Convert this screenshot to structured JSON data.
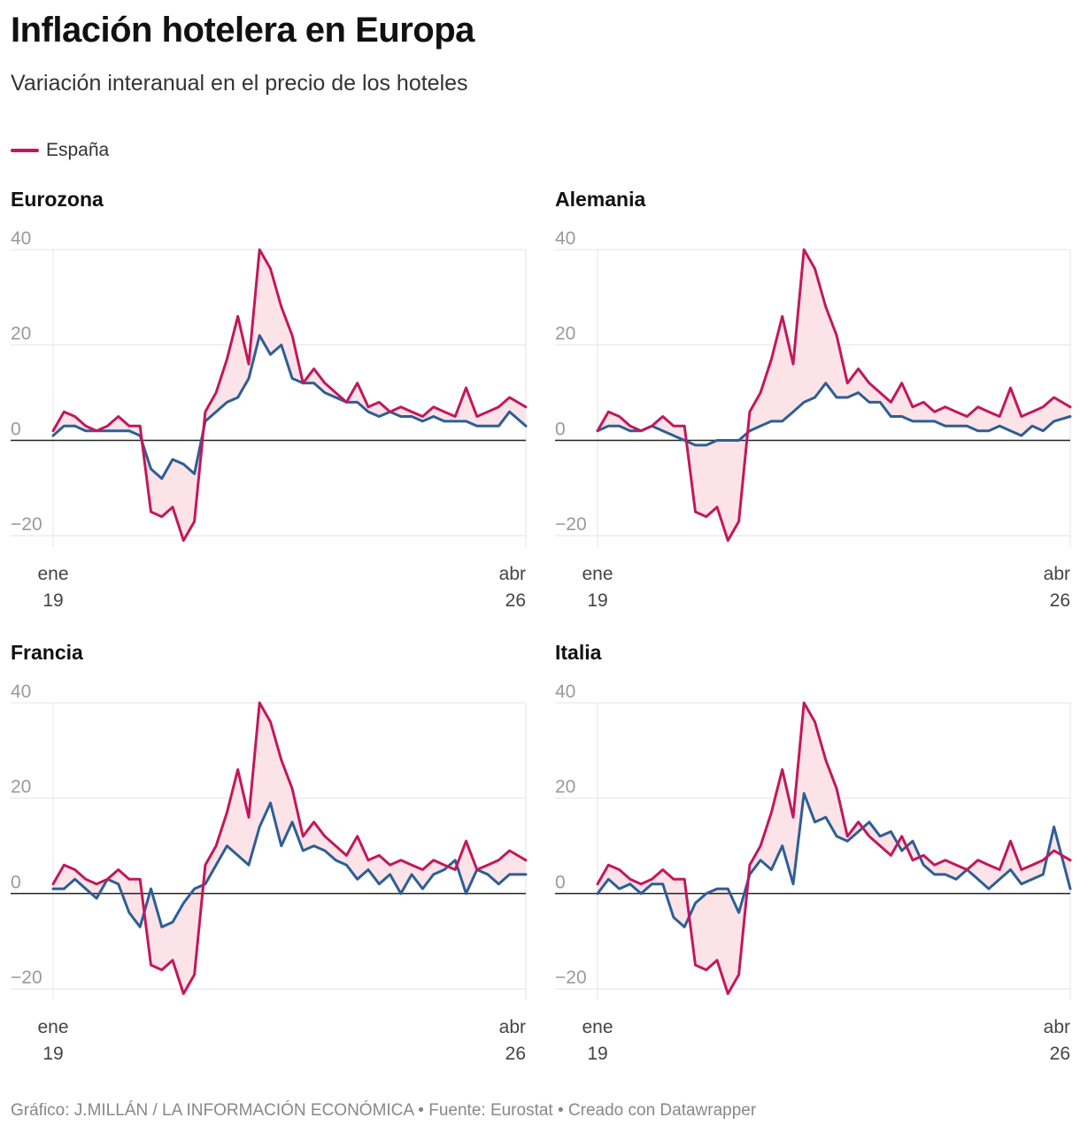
{
  "title": "Inflación hotelera en Europa",
  "subtitle": "Variación interanual en el precio de los hoteles",
  "legend": {
    "label": "España",
    "color": "#c2185b"
  },
  "footer": "Gráfico: J.MILLÁN / LA INFORMACIÓN ECONÓMICA • Fuente: Eurostat • Creado con Datawrapper",
  "colors": {
    "spain": "#c2185b",
    "other": "#2e5e95",
    "fill": "#fbe3e8",
    "grid": "#e4e4e4",
    "zero": "#222222"
  },
  "chart_data": [
    {
      "type": "line",
      "title": "Eurozona",
      "xlabel": "",
      "ylabel": "",
      "ylim": [
        -22,
        40
      ],
      "yticks": [
        40,
        20,
        0,
        -20
      ],
      "xticks": [
        {
          "month": 1,
          "lines": [
            "ene",
            "19"
          ]
        },
        {
          "month": 88,
          "lines": [
            "abr",
            "26"
          ]
        }
      ],
      "grid": true,
      "legend": "top-left",
      "series": [
        {
          "name": "España",
          "color": "#c2185b",
          "x": [
            1,
            3,
            5,
            7,
            9,
            11,
            13,
            15,
            17,
            19,
            21,
            23,
            25,
            27,
            29,
            31,
            33,
            35,
            37,
            39,
            41,
            43,
            45,
            47,
            49,
            51,
            53,
            55,
            57,
            59,
            61,
            63,
            65,
            67,
            69,
            71,
            73,
            75,
            77,
            79,
            81,
            83,
            85,
            88
          ],
          "values": [
            2,
            6,
            5,
            3,
            2,
            3,
            5,
            3,
            3,
            -15,
            -16,
            -14,
            -21,
            -17,
            6,
            10,
            17,
            26,
            16,
            40,
            36,
            28,
            22,
            12,
            15,
            12,
            10,
            8,
            12,
            7,
            8,
            6,
            7,
            6,
            5,
            7,
            6,
            5,
            11,
            5,
            6,
            7,
            9,
            7
          ]
        },
        {
          "color": "#2e5e95",
          "x": [
            1,
            3,
            5,
            7,
            9,
            11,
            13,
            15,
            17,
            19,
            21,
            23,
            25,
            27,
            29,
            31,
            33,
            35,
            37,
            39,
            41,
            43,
            45,
            47,
            49,
            51,
            53,
            55,
            57,
            59,
            61,
            63,
            65,
            67,
            69,
            71,
            73,
            75,
            77,
            79,
            81,
            83,
            85,
            88
          ],
          "values": [
            1,
            3,
            3,
            2,
            2,
            2,
            2,
            2,
            1,
            -6,
            -8,
            -4,
            -5,
            -7,
            4,
            6,
            8,
            9,
            13,
            22,
            18,
            20,
            13,
            12,
            12,
            10,
            9,
            8,
            8,
            6,
            5,
            6,
            5,
            5,
            4,
            5,
            4,
            4,
            4,
            3,
            3,
            3,
            6,
            3
          ]
        }
      ]
    },
    {
      "type": "line",
      "title": "Alemania",
      "xlabel": "",
      "ylabel": "",
      "ylim": [
        -22,
        40
      ],
      "yticks": [
        40,
        20,
        0,
        -20
      ],
      "xticks": [
        {
          "month": 1,
          "lines": [
            "ene",
            "19"
          ]
        },
        {
          "month": 88,
          "lines": [
            "abr",
            "26"
          ]
        }
      ],
      "grid": true,
      "legend": "none",
      "series": [
        {
          "name": "España",
          "color": "#c2185b",
          "x": [
            1,
            3,
            5,
            7,
            9,
            11,
            13,
            15,
            17,
            19,
            21,
            23,
            25,
            27,
            29,
            31,
            33,
            35,
            37,
            39,
            41,
            43,
            45,
            47,
            49,
            51,
            53,
            55,
            57,
            59,
            61,
            63,
            65,
            67,
            69,
            71,
            73,
            75,
            77,
            79,
            81,
            83,
            85,
            88
          ],
          "values": [
            2,
            6,
            5,
            3,
            2,
            3,
            5,
            3,
            3,
            -15,
            -16,
            -14,
            -21,
            -17,
            6,
            10,
            17,
            26,
            16,
            40,
            36,
            28,
            22,
            12,
            15,
            12,
            10,
            8,
            12,
            7,
            8,
            6,
            7,
            6,
            5,
            7,
            6,
            5,
            11,
            5,
            6,
            7,
            9,
            7
          ]
        },
        {
          "color": "#2e5e95",
          "x": [
            1,
            3,
            5,
            7,
            9,
            11,
            13,
            15,
            17,
            19,
            21,
            23,
            25,
            27,
            29,
            31,
            33,
            35,
            37,
            39,
            41,
            43,
            45,
            47,
            49,
            51,
            53,
            55,
            57,
            59,
            61,
            63,
            65,
            67,
            69,
            71,
            73,
            75,
            77,
            79,
            81,
            83,
            85,
            88
          ],
          "values": [
            2,
            3,
            3,
            2,
            2,
            3,
            2,
            1,
            0,
            -1,
            -1,
            0,
            0,
            0,
            2,
            3,
            4,
            4,
            6,
            8,
            9,
            12,
            9,
            9,
            10,
            8,
            8,
            5,
            5,
            4,
            4,
            4,
            3,
            3,
            3,
            2,
            2,
            3,
            2,
            1,
            3,
            2,
            4,
            5
          ]
        }
      ]
    },
    {
      "type": "line",
      "title": "Francia",
      "xlabel": "",
      "ylabel": "",
      "ylim": [
        -22,
        40
      ],
      "yticks": [
        40,
        20,
        0,
        -20
      ],
      "xticks": [
        {
          "month": 1,
          "lines": [
            "ene",
            "19"
          ]
        },
        {
          "month": 88,
          "lines": [
            "abr",
            "26"
          ]
        }
      ],
      "grid": true,
      "legend": "none",
      "series": [
        {
          "name": "España",
          "color": "#c2185b",
          "x": [
            1,
            3,
            5,
            7,
            9,
            11,
            13,
            15,
            17,
            19,
            21,
            23,
            25,
            27,
            29,
            31,
            33,
            35,
            37,
            39,
            41,
            43,
            45,
            47,
            49,
            51,
            53,
            55,
            57,
            59,
            61,
            63,
            65,
            67,
            69,
            71,
            73,
            75,
            77,
            79,
            81,
            83,
            85,
            88
          ],
          "values": [
            2,
            6,
            5,
            3,
            2,
            3,
            5,
            3,
            3,
            -15,
            -16,
            -14,
            -21,
            -17,
            6,
            10,
            17,
            26,
            16,
            40,
            36,
            28,
            22,
            12,
            15,
            12,
            10,
            8,
            12,
            7,
            8,
            6,
            7,
            6,
            5,
            7,
            6,
            5,
            11,
            5,
            6,
            7,
            9,
            7
          ]
        },
        {
          "color": "#2e5e95",
          "x": [
            1,
            3,
            5,
            7,
            9,
            11,
            13,
            15,
            17,
            19,
            21,
            23,
            25,
            27,
            29,
            31,
            33,
            35,
            37,
            39,
            41,
            43,
            45,
            47,
            49,
            51,
            53,
            55,
            57,
            59,
            61,
            63,
            65,
            67,
            69,
            71,
            73,
            75,
            77,
            79,
            81,
            83,
            85,
            88
          ],
          "values": [
            1,
            1,
            3,
            1,
            -1,
            3,
            2,
            -4,
            -7,
            1,
            -7,
            -6,
            -2,
            1,
            2,
            6,
            10,
            8,
            6,
            14,
            19,
            10,
            15,
            9,
            10,
            9,
            7,
            6,
            3,
            5,
            2,
            4,
            0,
            4,
            1,
            4,
            5,
            7,
            0,
            5,
            4,
            2,
            4,
            4
          ]
        }
      ]
    },
    {
      "type": "line",
      "title": "Italia",
      "xlabel": "",
      "ylabel": "",
      "ylim": [
        -22,
        40
      ],
      "yticks": [
        40,
        20,
        0,
        -20
      ],
      "xticks": [
        {
          "month": 1,
          "lines": [
            "ene",
            "19"
          ]
        },
        {
          "month": 88,
          "lines": [
            "abr",
            "26"
          ]
        }
      ],
      "grid": true,
      "legend": "none",
      "series": [
        {
          "name": "España",
          "color": "#c2185b",
          "x": [
            1,
            3,
            5,
            7,
            9,
            11,
            13,
            15,
            17,
            19,
            21,
            23,
            25,
            27,
            29,
            31,
            33,
            35,
            37,
            39,
            41,
            43,
            45,
            47,
            49,
            51,
            53,
            55,
            57,
            59,
            61,
            63,
            65,
            67,
            69,
            71,
            73,
            75,
            77,
            79,
            81,
            83,
            85,
            88
          ],
          "values": [
            2,
            6,
            5,
            3,
            2,
            3,
            5,
            3,
            3,
            -15,
            -16,
            -14,
            -21,
            -17,
            6,
            10,
            17,
            26,
            16,
            40,
            36,
            28,
            22,
            12,
            15,
            12,
            10,
            8,
            12,
            7,
            8,
            6,
            7,
            6,
            5,
            7,
            6,
            5,
            11,
            5,
            6,
            7,
            9,
            7
          ]
        },
        {
          "color": "#2e5e95",
          "x": [
            1,
            3,
            5,
            7,
            9,
            11,
            13,
            15,
            17,
            19,
            21,
            23,
            25,
            27,
            29,
            31,
            33,
            35,
            37,
            39,
            41,
            43,
            45,
            47,
            49,
            51,
            53,
            55,
            57,
            59,
            61,
            63,
            65,
            67,
            69,
            71,
            73,
            75,
            77,
            79,
            81,
            83,
            85,
            88
          ],
          "values": [
            0,
            3,
            1,
            2,
            0,
            2,
            2,
            -5,
            -7,
            -2,
            0,
            1,
            1,
            -4,
            4,
            7,
            5,
            10,
            2,
            21,
            15,
            16,
            12,
            11,
            13,
            15,
            12,
            13,
            9,
            11,
            6,
            4,
            4,
            3,
            5,
            3,
            1,
            3,
            5,
            2,
            3,
            4,
            14,
            1
          ]
        }
      ]
    }
  ]
}
